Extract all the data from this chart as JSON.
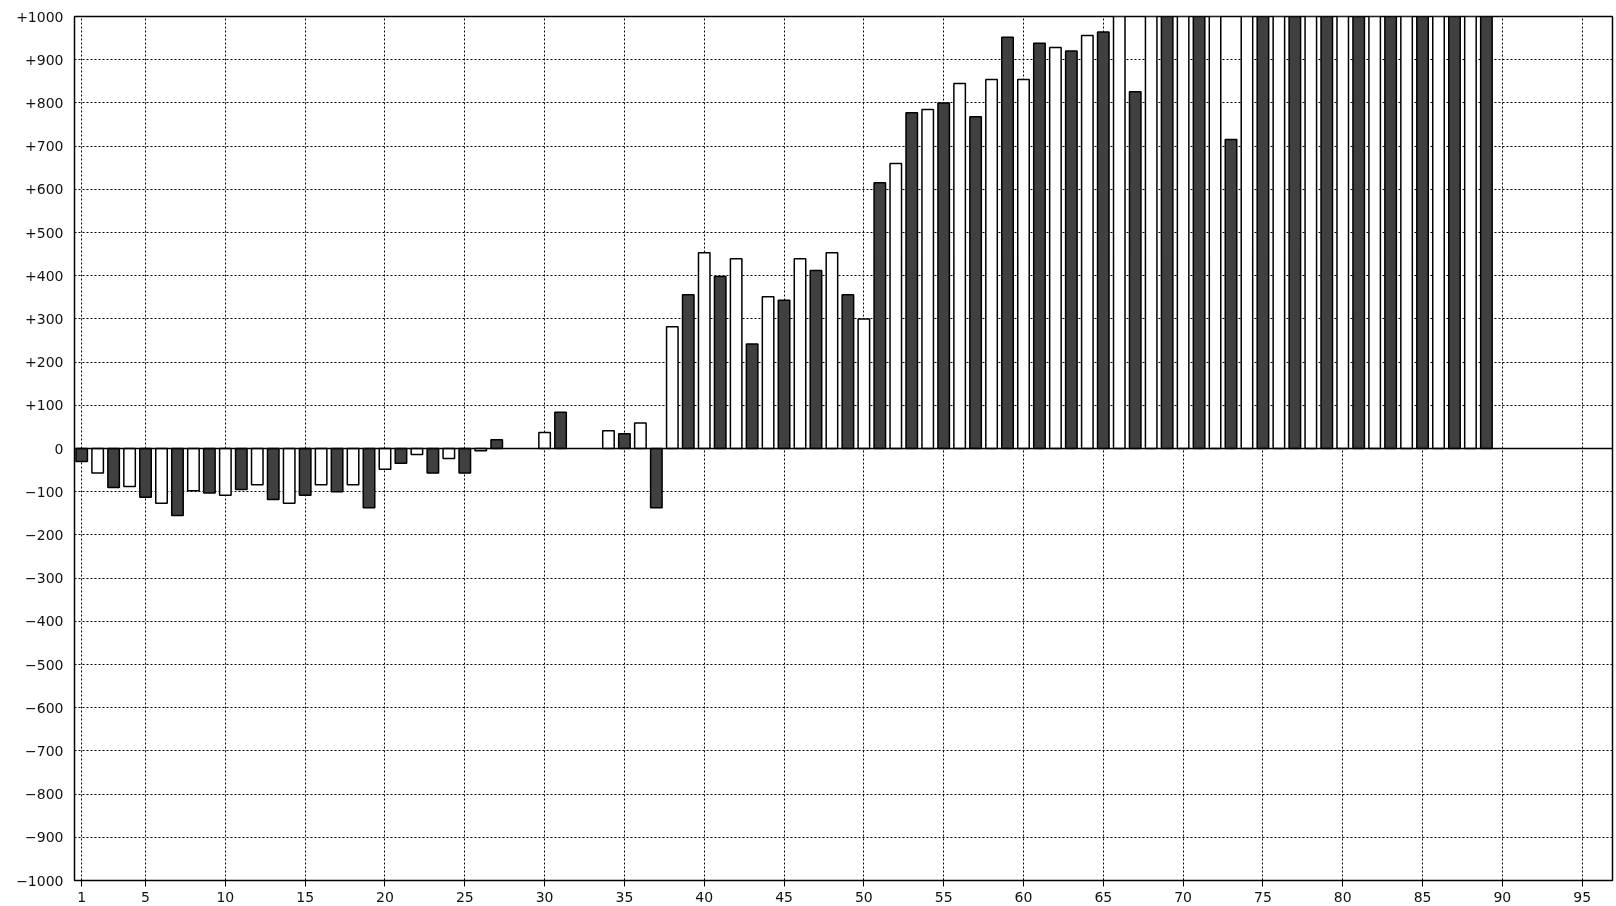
{
  "chart_data": {
    "type": "bar",
    "x": [
      1,
      2,
      3,
      4,
      5,
      6,
      7,
      8,
      9,
      10,
      11,
      12,
      13,
      14,
      15,
      16,
      17,
      18,
      19,
      20,
      21,
      22,
      23,
      24,
      25,
      26,
      27,
      28,
      29,
      30,
      31,
      32,
      33,
      34,
      35,
      36,
      37,
      38,
      39,
      40,
      41,
      42,
      43,
      44,
      45,
      46,
      47,
      48,
      49,
      50,
      51,
      52,
      53,
      54,
      55,
      56,
      57,
      58,
      59,
      60,
      61,
      62,
      63,
      64,
      65,
      66,
      67,
      68,
      69,
      70,
      71,
      72,
      73,
      74,
      75,
      76,
      77,
      78,
      79,
      80,
      81,
      82,
      83,
      84,
      85,
      86,
      87,
      88,
      89
    ],
    "values": [
      -30,
      -57,
      -90,
      -88,
      -113,
      -127,
      -155,
      -98,
      -103,
      -108,
      -95,
      -84,
      -118,
      -127,
      -108,
      -84,
      -100,
      -84,
      -137,
      -48,
      -34,
      -14,
      -57,
      -23,
      -57,
      -5,
      20,
      null,
      null,
      37,
      84,
      null,
      null,
      41,
      34,
      59,
      -137,
      282,
      356,
      453,
      398,
      439,
      242,
      351,
      343,
      439,
      412,
      453,
      356,
      300,
      615,
      660,
      777,
      785,
      800,
      845,
      768,
      854,
      952,
      854,
      938,
      928,
      920,
      956,
      964,
      1000,
      826,
      1000,
      1000,
      1000,
      1000,
      1000,
      715,
      1000,
      1000,
      1000,
      1000,
      1000,
      1000,
      1000,
      1000,
      1000,
      1000,
      1000,
      1000,
      1000,
      1000,
      1000,
      1000
    ],
    "colors": [
      "#404040",
      "#ffffff",
      "#404040",
      "#ffffff",
      "#404040",
      "#ffffff",
      "#404040",
      "#ffffff",
      "#404040",
      "#ffffff",
      "#404040",
      "#ffffff",
      "#404040",
      "#ffffff",
      "#404040",
      "#ffffff",
      "#404040",
      "#ffffff",
      "#404040",
      "#ffffff",
      "#404040",
      "#ffffff",
      "#404040",
      "#ffffff",
      "#404040",
      "#ffffff",
      "#404040",
      "#ffffff",
      "#404040",
      "#ffffff",
      "#404040",
      "#ffffff",
      "#404040",
      "#ffffff",
      "#404040",
      "#ffffff",
      "#404040",
      "#ffffff",
      "#404040",
      "#ffffff",
      "#404040",
      "#ffffff",
      "#404040",
      "#ffffff",
      "#404040",
      "#ffffff",
      "#404040",
      "#ffffff",
      "#404040",
      "#ffffff",
      "#404040",
      "#ffffff",
      "#404040",
      "#ffffff",
      "#404040",
      "#ffffff",
      "#404040",
      "#ffffff",
      "#404040",
      "#ffffff",
      "#404040",
      "#ffffff",
      "#404040",
      "#ffffff",
      "#404040",
      "#ffffff",
      "#404040",
      "#ffffff",
      "#404040",
      "#ffffff",
      "#404040",
      "#ffffff",
      "#404040",
      "#ffffff",
      "#404040",
      "#ffffff",
      "#404040",
      "#ffffff",
      "#404040",
      "#ffffff",
      "#404040",
      "#ffffff",
      "#404040",
      "#ffffff",
      "#404040",
      "#ffffff",
      "#404040",
      "#ffffff",
      "#404040"
    ],
    "xlim": [
      0.55,
      96.9
    ],
    "ylim": [
      -1000,
      1000
    ],
    "xticks": [
      1,
      5,
      10,
      15,
      20,
      25,
      30,
      35,
      40,
      45,
      50,
      55,
      60,
      65,
      70,
      75,
      80,
      85,
      90,
      95
    ],
    "yticks": [
      {
        "value": -1000,
        "label": "−1000"
      },
      {
        "value": -900,
        "label": "−900"
      },
      {
        "value": -800,
        "label": "−800"
      },
      {
        "value": -700,
        "label": "−700"
      },
      {
        "value": -600,
        "label": "−600"
      },
      {
        "value": -500,
        "label": "−500"
      },
      {
        "value": -400,
        "label": "−400"
      },
      {
        "value": -300,
        "label": "−300"
      },
      {
        "value": -200,
        "label": "−200"
      },
      {
        "value": -100,
        "label": "−100"
      },
      0,
      {
        "value": 100,
        "label": "+100"
      },
      {
        "value": 200,
        "label": "+200"
      },
      {
        "value": 300,
        "label": "+300"
      },
      {
        "value": 400,
        "label": "+400"
      },
      {
        "value": 500,
        "label": "+500"
      },
      {
        "value": 600,
        "label": "+600"
      },
      {
        "value": 700,
        "label": "+700"
      },
      {
        "value": 800,
        "label": "+800"
      },
      {
        "value": 900,
        "label": "+900"
      },
      {
        "value": 1000,
        "label": "+1000"
      }
    ],
    "grid": true
  }
}
